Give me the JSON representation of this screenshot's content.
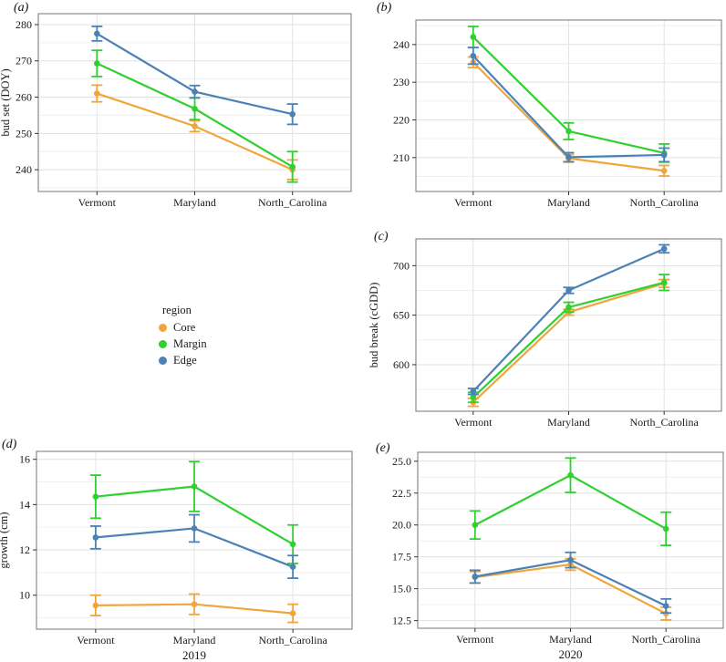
{
  "legend": {
    "title": "region",
    "items": [
      {
        "label": "Core",
        "color": "#EFA63C"
      },
      {
        "label": "Margin",
        "color": "#30D030"
      },
      {
        "label": "Edge",
        "color": "#4C81B5"
      }
    ]
  },
  "colors": {
    "Core": "#EFA63C",
    "Margin": "#30D030",
    "Edge": "#4C81B5",
    "grid_major": "#E0E0E0",
    "grid_minor": "#F0F0F0",
    "grid_vertical": "#E4E4E4",
    "panel_border": "#808080",
    "tick_mark": "#333333"
  },
  "chart_data": [
    {
      "id": "a",
      "panel_label": "(a)",
      "type": "line",
      "title": "",
      "ylabel": "bud set (DOY)",
      "xlabel": "",
      "categories": [
        "Vermont",
        "Maryland",
        "North_Carolina"
      ],
      "ylim": [
        234,
        283
      ],
      "yticks": [
        240,
        250,
        260,
        270,
        280
      ],
      "ytick_labels": [
        "240",
        "250",
        "260",
        "270",
        "280"
      ],
      "minor_step": 5,
      "grid": true,
      "series": [
        {
          "name": "Core",
          "values": [
            261.0,
            252.0,
            240.0
          ],
          "errors": [
            2.3,
            1.5,
            2.7
          ]
        },
        {
          "name": "Margin",
          "values": [
            269.3,
            256.8,
            240.8
          ],
          "errors": [
            3.6,
            3.0,
            4.2
          ]
        },
        {
          "name": "Edge",
          "values": [
            277.5,
            261.5,
            255.3
          ],
          "errors": [
            2.0,
            1.7,
            2.8
          ]
        }
      ]
    },
    {
      "id": "b",
      "panel_label": "(b)",
      "type": "line",
      "title": "",
      "ylabel": "",
      "xlabel": "",
      "categories": [
        "Vermont",
        "Maryland",
        "North_Carolina"
      ],
      "ylim": [
        201,
        246.5
      ],
      "yticks": [
        210,
        220,
        230,
        240
      ],
      "ytick_labels": [
        "210",
        "220",
        "230",
        "240"
      ],
      "minor_step": 5,
      "grid": true,
      "series": [
        {
          "name": "Core",
          "values": [
            235.3,
            209.8,
            206.5
          ],
          "errors": [
            1.4,
            1.0,
            1.4
          ]
        },
        {
          "name": "Margin",
          "values": [
            242.0,
            217.0,
            211.2
          ],
          "errors": [
            2.8,
            2.2,
            2.4
          ]
        },
        {
          "name": "Edge",
          "values": [
            237.0,
            210.1,
            210.7
          ],
          "errors": [
            2.2,
            1.2,
            1.8
          ]
        }
      ]
    },
    {
      "id": "c",
      "panel_label": "(c)",
      "type": "line",
      "title": "",
      "ylabel": "bud break (cGDD)",
      "xlabel": "",
      "categories": [
        "Vermont",
        "Maryland",
        "North_Carolina"
      ],
      "ylim": [
        553,
        727
      ],
      "yticks": [
        600,
        650,
        700
      ],
      "ytick_labels": [
        "600",
        "650",
        "700"
      ],
      "minor_step": 25,
      "grid": true,
      "series": [
        {
          "name": "Core",
          "values": [
            562,
            653,
            682
          ],
          "errors": [
            4,
            3,
            4
          ]
        },
        {
          "name": "Margin",
          "values": [
            567,
            658,
            683
          ],
          "errors": [
            5,
            5,
            8
          ]
        },
        {
          "name": "Edge",
          "values": [
            573,
            675,
            717
          ],
          "errors": [
            3,
            3,
            4
          ]
        }
      ]
    },
    {
      "id": "d",
      "panel_label": "(d)",
      "type": "line",
      "title": "",
      "ylabel": "growth (cm)",
      "xlabel": "2019",
      "categories": [
        "Vermont",
        "Maryland",
        "North_Carolina"
      ],
      "ylim": [
        8.5,
        16.35
      ],
      "yticks": [
        10,
        12,
        14,
        16
      ],
      "ytick_labels": [
        "10",
        "12",
        "14",
        "16"
      ],
      "minor_step": 1,
      "grid": true,
      "series": [
        {
          "name": "Core",
          "values": [
            9.55,
            9.6,
            9.2
          ],
          "errors": [
            0.45,
            0.45,
            0.4
          ]
        },
        {
          "name": "Margin",
          "values": [
            14.35,
            14.8,
            12.25
          ],
          "errors": [
            0.95,
            1.1,
            0.85
          ]
        },
        {
          "name": "Edge",
          "values": [
            12.55,
            12.95,
            11.25
          ],
          "errors": [
            0.5,
            0.6,
            0.5
          ]
        }
      ]
    },
    {
      "id": "e",
      "panel_label": "(e)",
      "type": "line",
      "title": "",
      "ylabel": "",
      "xlabel": "2020",
      "categories": [
        "Vermont",
        "Maryland",
        "North_Carolina"
      ],
      "ylim": [
        11.9,
        25.7
      ],
      "yticks": [
        12.5,
        15.0,
        17.5,
        20.0,
        22.5,
        25.0
      ],
      "ytick_labels": [
        "12.5",
        "15.0",
        "17.5",
        "20.0",
        "22.5",
        "25.0"
      ],
      "minor_step": 1.25,
      "grid": true,
      "series": [
        {
          "name": "Core",
          "values": [
            15.9,
            16.9,
            13.05
          ],
          "errors": [
            0.45,
            0.45,
            0.5
          ]
        },
        {
          "name": "Margin",
          "values": [
            20.0,
            23.9,
            19.7
          ],
          "errors": [
            1.1,
            1.35,
            1.3
          ]
        },
        {
          "name": "Edge",
          "values": [
            15.95,
            17.25,
            13.65
          ],
          "errors": [
            0.5,
            0.6,
            0.55
          ]
        }
      ]
    }
  ]
}
